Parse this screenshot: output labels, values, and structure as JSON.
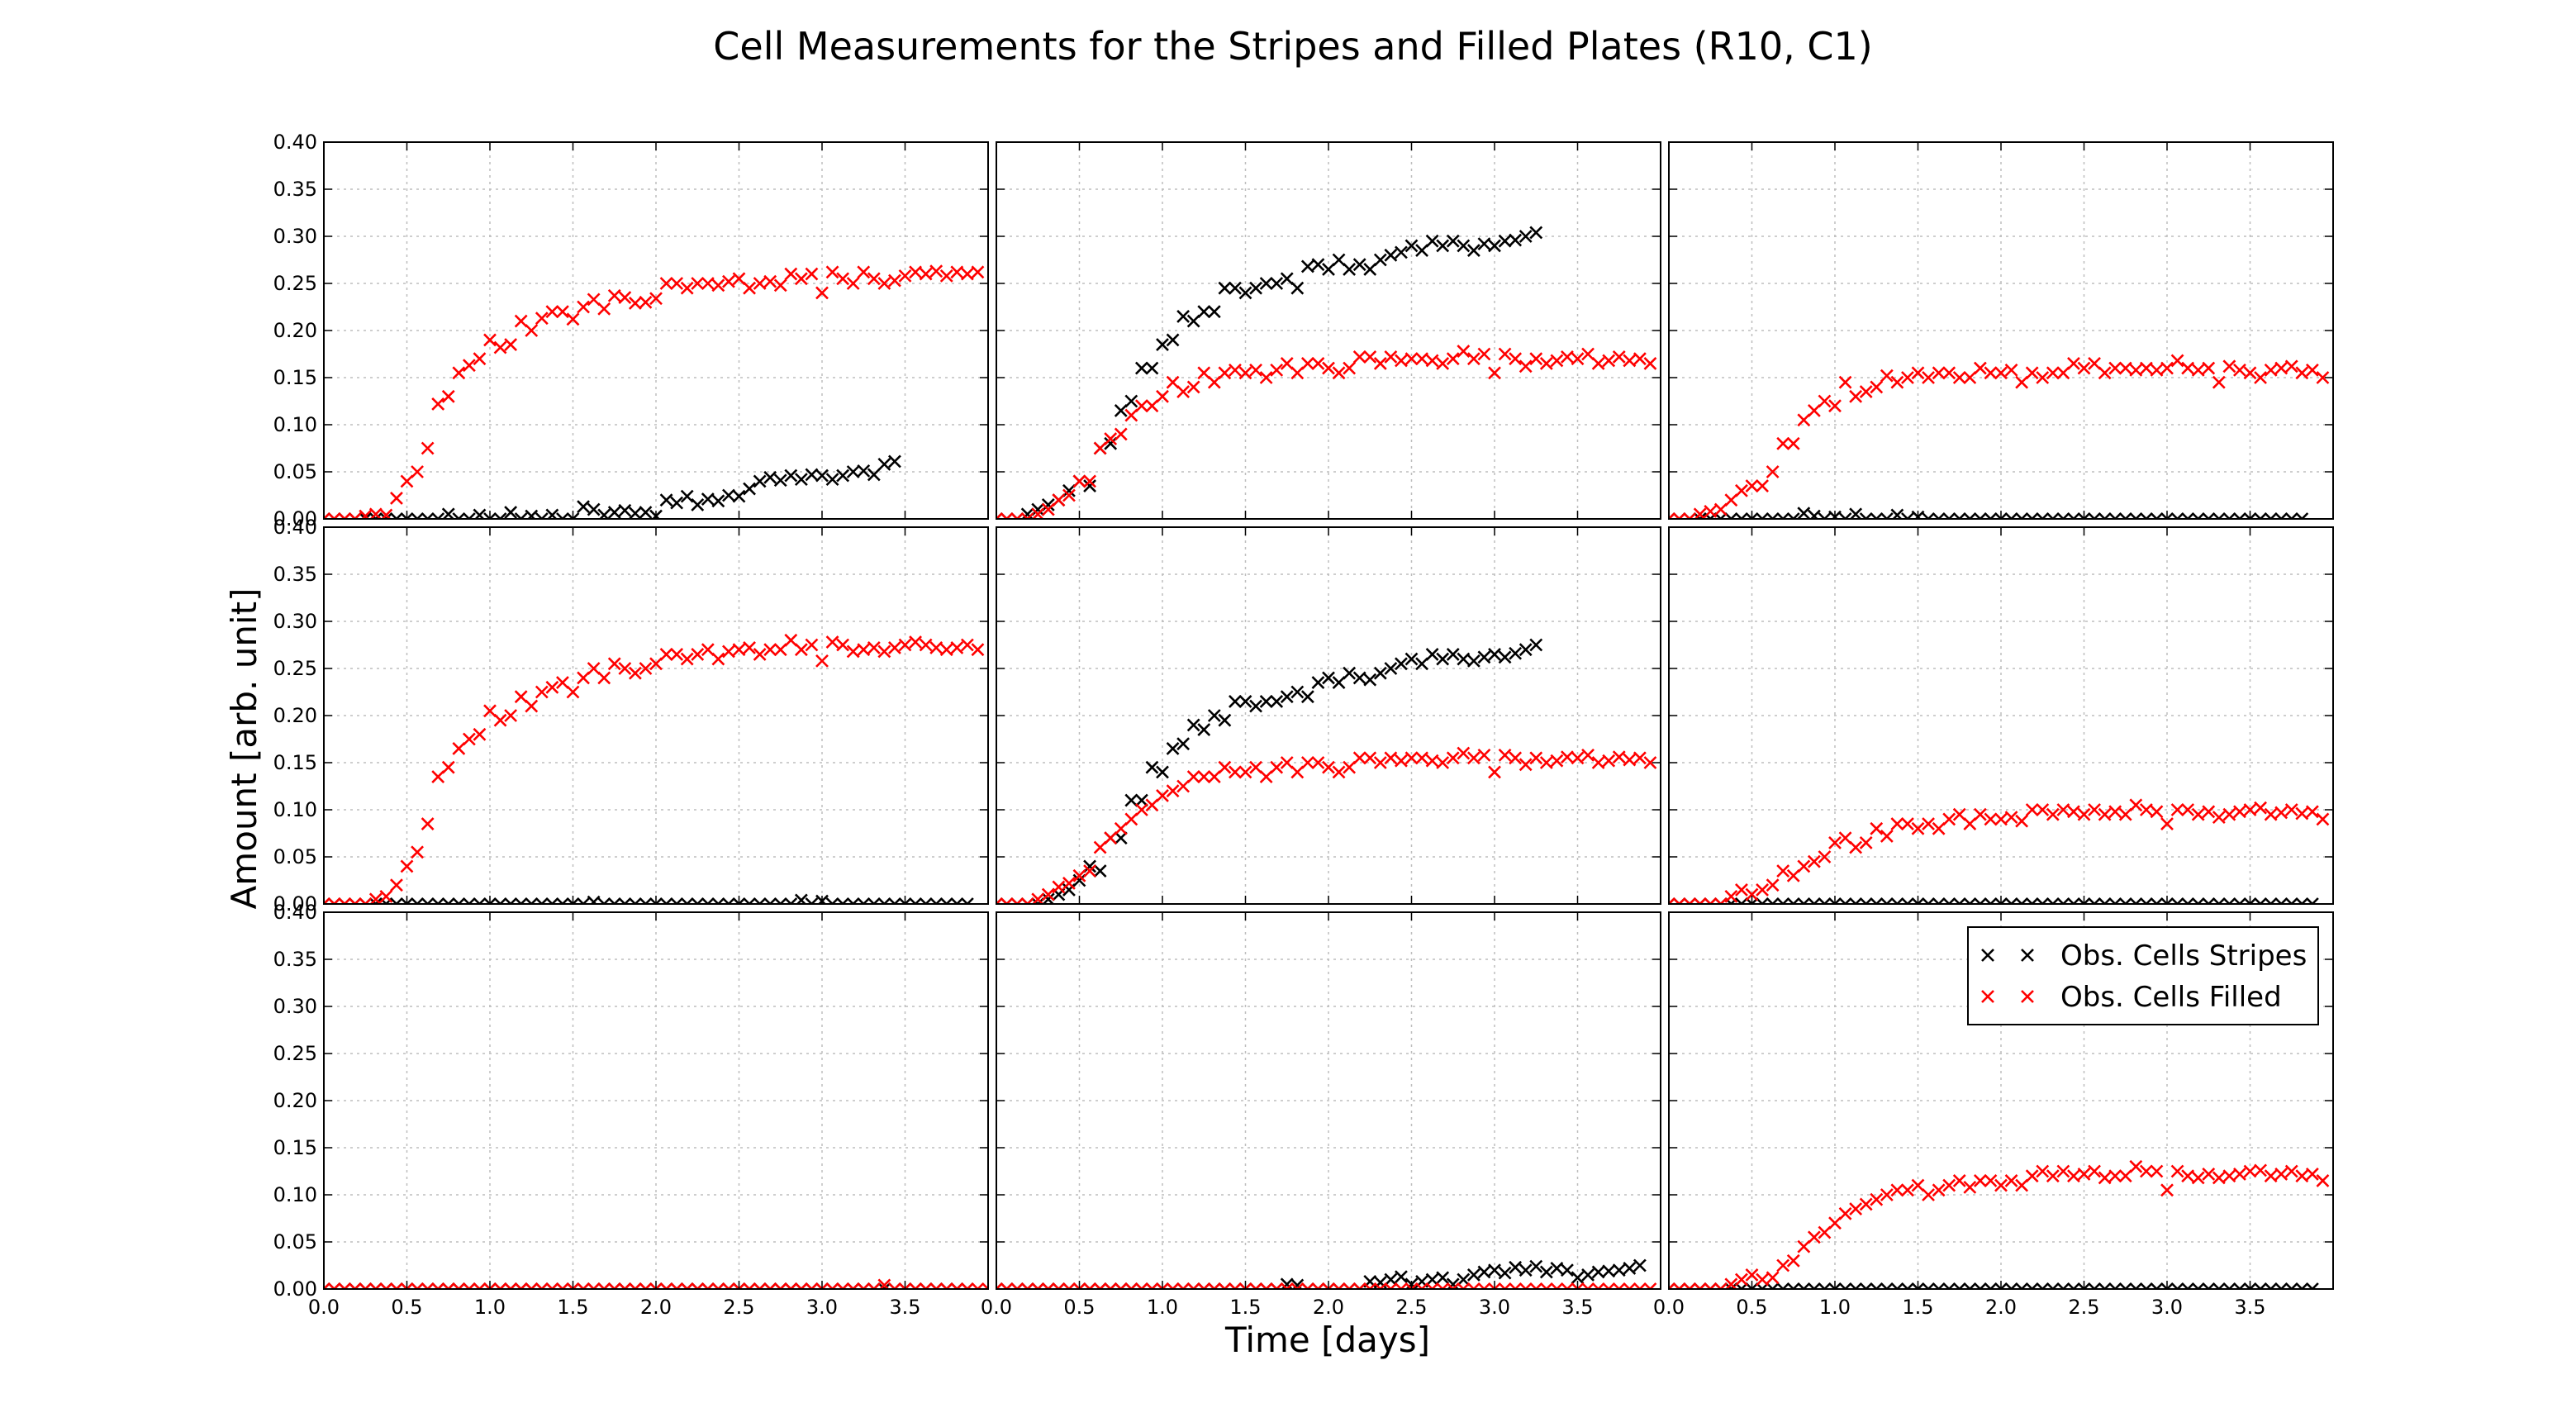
{
  "chart_data": {
    "type": "scatter",
    "title": "Cell Measurements for the Stripes and Filled Plates (R10, C1)",
    "xlabel": "Time [days]",
    "ylabel": "Amount [arb. unit]",
    "xlim": [
      0,
      4.0
    ],
    "ylim": [
      0,
      0.4
    ],
    "xticks": [
      "0.0",
      "0.5",
      "1.0",
      "1.5",
      "2.0",
      "2.5",
      "3.0",
      "3.5"
    ],
    "yticks": [
      "0.00",
      "0.05",
      "0.10",
      "0.15",
      "0.20",
      "0.25",
      "0.30",
      "0.35",
      "0.40"
    ],
    "grid": true,
    "layout": "3x3 grid of panels sharing axes",
    "marker": "x",
    "legend": {
      "placement": "upper-right of bottom-right panel",
      "entries": [
        {
          "name": "Obs. Cells Stripes",
          "color": "#000000"
        },
        {
          "name": "Obs. Cells Filled",
          "color": "#ff0000"
        }
      ]
    },
    "series_colors": {
      "stripes": "#000000",
      "filled": "#ff0000"
    },
    "t0": 0.0,
    "dt": 0.0625,
    "panels": [
      {
        "stripes": [
          0,
          0,
          0,
          0,
          0,
          0,
          0,
          0,
          0,
          0,
          0,
          0,
          0.005,
          0,
          0,
          0.004,
          0,
          0,
          0.007,
          0,
          0.003,
          0,
          0.004,
          0,
          0,
          0.013,
          0.01,
          0.004,
          0.007,
          0.009,
          0.006,
          0.007,
          0.003,
          0.02,
          0.017,
          0.024,
          0.015,
          0.021,
          0.019,
          0.025,
          0.024,
          0.032,
          0.04,
          0.044,
          0.041,
          0.046,
          0.042,
          0.047,
          0.046,
          0.042,
          0.046,
          0.05,
          0.051,
          0.047,
          0.058,
          0.061
        ],
        "filled": [
          0,
          0,
          0,
          0,
          0.003,
          0.005,
          0.004,
          0.022,
          0.04,
          0.05,
          0.075,
          0.122,
          0.13,
          0.155,
          0.163,
          0.17,
          0.19,
          0.182,
          0.185,
          0.21,
          0.2,
          0.213,
          0.22,
          0.22,
          0.212,
          0.225,
          0.233,
          0.223,
          0.237,
          0.235,
          0.229,
          0.23,
          0.234,
          0.25,
          0.25,
          0.245,
          0.25,
          0.25,
          0.248,
          0.252,
          0.255,
          0.245,
          0.25,
          0.252,
          0.248,
          0.26,
          0.255,
          0.26,
          0.24,
          0.262,
          0.255,
          0.25,
          0.262,
          0.255,
          0.25,
          0.253,
          0.258,
          0.262,
          0.26,
          0.263,
          0.258,
          0.262,
          0.26,
          0.262
        ]
      },
      {
        "stripes": [
          0,
          0,
          0,
          0.005,
          0.01,
          0.015,
          0.02,
          0.03,
          0.04,
          0.035,
          0.075,
          0.08,
          0.115,
          0.125,
          0.16,
          0.16,
          0.185,
          0.19,
          0.215,
          0.21,
          0.22,
          0.22,
          0.245,
          0.245,
          0.24,
          0.245,
          0.25,
          0.25,
          0.255,
          0.245,
          0.268,
          0.27,
          0.265,
          0.275,
          0.265,
          0.27,
          0.265,
          0.275,
          0.28,
          0.283,
          0.29,
          0.285,
          0.295,
          0.29,
          0.295,
          0.29,
          0.285,
          0.292,
          0.29,
          0.295,
          0.296,
          0.3,
          0.304
        ],
        "filled": [
          0,
          0,
          0,
          0,
          0.005,
          0.01,
          0.02,
          0.025,
          0.04,
          0.04,
          0.075,
          0.085,
          0.09,
          0.11,
          0.12,
          0.12,
          0.13,
          0.145,
          0.135,
          0.14,
          0.155,
          0.145,
          0.155,
          0.158,
          0.155,
          0.158,
          0.15,
          0.158,
          0.165,
          0.155,
          0.165,
          0.165,
          0.16,
          0.155,
          0.16,
          0.172,
          0.172,
          0.165,
          0.172,
          0.168,
          0.17,
          0.17,
          0.168,
          0.165,
          0.17,
          0.178,
          0.17,
          0.175,
          0.155,
          0.175,
          0.17,
          0.162,
          0.17,
          0.165,
          0.168,
          0.172,
          0.17,
          0.175,
          0.165,
          0.168,
          0.172,
          0.168,
          0.17,
          0.165
        ]
      },
      {
        "stripes": [
          0,
          0,
          0,
          0,
          0,
          0,
          0,
          0,
          0,
          0,
          0,
          0,
          0,
          0.006,
          0.003,
          0,
          0.002,
          0,
          0.005,
          0,
          0,
          0,
          0.004,
          0,
          0.002,
          0,
          0,
          0,
          0,
          0,
          0,
          0,
          0,
          0,
          0,
          0,
          0,
          0,
          0,
          0,
          0,
          0,
          0,
          0,
          0,
          0,
          0,
          0,
          0,
          0,
          0,
          0,
          0,
          0,
          0,
          0,
          0,
          0,
          0,
          0,
          0,
          0
        ],
        "filled": [
          0,
          0,
          0,
          0.005,
          0.008,
          0.01,
          0.02,
          0.03,
          0.035,
          0.035,
          0.05,
          0.08,
          0.08,
          0.105,
          0.115,
          0.125,
          0.12,
          0.145,
          0.13,
          0.135,
          0.14,
          0.152,
          0.145,
          0.15,
          0.155,
          0.15,
          0.155,
          0.155,
          0.15,
          0.15,
          0.16,
          0.155,
          0.155,
          0.158,
          0.145,
          0.155,
          0.15,
          0.155,
          0.155,
          0.165,
          0.16,
          0.165,
          0.155,
          0.16,
          0.16,
          0.158,
          0.16,
          0.158,
          0.16,
          0.168,
          0.16,
          0.158,
          0.16,
          0.145,
          0.162,
          0.158,
          0.155,
          0.15,
          0.158,
          0.16,
          0.162,
          0.155,
          0.158,
          0.15
        ]
      },
      {
        "stripes": [
          0,
          0,
          0,
          0,
          0,
          0,
          0,
          0,
          0,
          0,
          0,
          0,
          0,
          0,
          0,
          0,
          0,
          0,
          0,
          0,
          0,
          0,
          0,
          0,
          0,
          0,
          0.002,
          0,
          0,
          0,
          0,
          0,
          0,
          0,
          0,
          0,
          0,
          0,
          0,
          0,
          0,
          0,
          0,
          0,
          0,
          0,
          0.004,
          0,
          0.003,
          0,
          0,
          0,
          0,
          0,
          0,
          0,
          0,
          0,
          0,
          0,
          0,
          0,
          0
        ],
        "filled": [
          0,
          0,
          0,
          0,
          0,
          0.005,
          0.008,
          0.02,
          0.04,
          0.055,
          0.085,
          0.135,
          0.145,
          0.165,
          0.175,
          0.18,
          0.205,
          0.195,
          0.2,
          0.22,
          0.21,
          0.225,
          0.23,
          0.235,
          0.225,
          0.24,
          0.25,
          0.24,
          0.255,
          0.25,
          0.245,
          0.25,
          0.255,
          0.265,
          0.265,
          0.26,
          0.265,
          0.27,
          0.26,
          0.268,
          0.27,
          0.272,
          0.265,
          0.27,
          0.27,
          0.28,
          0.27,
          0.275,
          0.258,
          0.278,
          0.275,
          0.268,
          0.27,
          0.272,
          0.268,
          0.272,
          0.275,
          0.278,
          0.275,
          0.272,
          0.27,
          0.272,
          0.275,
          0.27
        ]
      },
      {
        "stripes": [
          0,
          0,
          0,
          0,
          0,
          0.005,
          0.01,
          0.015,
          0.025,
          0.04,
          0.035,
          0.07,
          0.07,
          0.11,
          0.11,
          0.145,
          0.14,
          0.165,
          0.17,
          0.19,
          0.185,
          0.2,
          0.195,
          0.215,
          0.215,
          0.21,
          0.215,
          0.215,
          0.22,
          0.225,
          0.22,
          0.235,
          0.24,
          0.235,
          0.245,
          0.24,
          0.238,
          0.245,
          0.25,
          0.255,
          0.26,
          0.255,
          0.265,
          0.26,
          0.265,
          0.26,
          0.258,
          0.262,
          0.265,
          0.262,
          0.266,
          0.27,
          0.275
        ],
        "filled": [
          0,
          0,
          0,
          0,
          0.005,
          0.01,
          0.018,
          0.022,
          0.03,
          0.035,
          0.06,
          0.07,
          0.08,
          0.09,
          0.1,
          0.105,
          0.115,
          0.12,
          0.125,
          0.135,
          0.135,
          0.135,
          0.145,
          0.14,
          0.14,
          0.145,
          0.135,
          0.145,
          0.15,
          0.14,
          0.15,
          0.15,
          0.145,
          0.14,
          0.145,
          0.155,
          0.155,
          0.15,
          0.155,
          0.152,
          0.155,
          0.155,
          0.152,
          0.15,
          0.155,
          0.16,
          0.155,
          0.158,
          0.14,
          0.158,
          0.155,
          0.148,
          0.155,
          0.15,
          0.152,
          0.156,
          0.155,
          0.158,
          0.15,
          0.152,
          0.156,
          0.153,
          0.155,
          0.15
        ]
      },
      {
        "stripes": [
          0,
          0,
          0,
          0,
          0,
          0,
          0,
          0,
          0,
          0,
          0,
          0,
          0,
          0,
          0,
          0,
          0,
          0,
          0,
          0,
          0,
          0,
          0,
          0,
          0,
          0,
          0,
          0,
          0,
          0,
          0,
          0,
          0,
          0,
          0,
          0,
          0,
          0,
          0,
          0,
          0,
          0,
          0,
          0,
          0,
          0,
          0,
          0,
          0,
          0,
          0,
          0,
          0,
          0,
          0,
          0,
          0,
          0,
          0,
          0,
          0,
          0,
          0
        ],
        "filled": [
          0,
          0,
          0,
          0,
          0,
          0,
          0.008,
          0.015,
          0.01,
          0.015,
          0.02,
          0.035,
          0.03,
          0.04,
          0.045,
          0.05,
          0.065,
          0.07,
          0.06,
          0.065,
          0.08,
          0.072,
          0.085,
          0.085,
          0.08,
          0.085,
          0.08,
          0.09,
          0.095,
          0.085,
          0.095,
          0.09,
          0.09,
          0.092,
          0.088,
          0.1,
          0.1,
          0.095,
          0.1,
          0.098,
          0.095,
          0.1,
          0.095,
          0.098,
          0.095,
          0.105,
          0.1,
          0.098,
          0.085,
          0.1,
          0.1,
          0.095,
          0.098,
          0.092,
          0.095,
          0.098,
          0.1,
          0.102,
          0.095,
          0.097,
          0.1,
          0.096,
          0.098,
          0.09
        ]
      },
      {
        "stripes": [
          0,
          0,
          0,
          0,
          0,
          0,
          0,
          0,
          0,
          0,
          0,
          0,
          0,
          0,
          0,
          0,
          0,
          0,
          0,
          0,
          0,
          0,
          0,
          0,
          0,
          0,
          0,
          0,
          0,
          0,
          0,
          0,
          0,
          0,
          0,
          0,
          0,
          0,
          0,
          0,
          0,
          0,
          0,
          0,
          0,
          0,
          0,
          0,
          0,
          0,
          0,
          0,
          0,
          0,
          0,
          0,
          0,
          0,
          0,
          0,
          0,
          0,
          0
        ],
        "filled": [
          0,
          0,
          0,
          0,
          0,
          0,
          0,
          0,
          0,
          0,
          0,
          0,
          0,
          0,
          0,
          0,
          0,
          0,
          0,
          0,
          0,
          0,
          0,
          0,
          0,
          0,
          0,
          0,
          0,
          0,
          0,
          0,
          0,
          0,
          0,
          0,
          0,
          0,
          0,
          0,
          0,
          0,
          0,
          0,
          0,
          0,
          0,
          0,
          0,
          0,
          0,
          0,
          0,
          0,
          0.004,
          0,
          0,
          0,
          0,
          0,
          0,
          0,
          0,
          0,
          0
        ]
      },
      {
        "stripes": [
          0,
          0,
          0,
          0,
          0,
          0,
          0,
          0,
          0,
          0,
          0,
          0,
          0,
          0,
          0,
          0,
          0,
          0,
          0,
          0,
          0,
          0,
          0,
          0,
          0,
          0,
          0,
          0,
          0.005,
          0.004,
          0,
          0,
          0,
          0,
          0,
          0,
          0.008,
          0.007,
          0.01,
          0.013,
          0.005,
          0.008,
          0.01,
          0.012,
          0.005,
          0.01,
          0.015,
          0.018,
          0.02,
          0.017,
          0.023,
          0.02,
          0.024,
          0.018,
          0.022,
          0.02,
          0.012,
          0.015,
          0.018,
          0.019,
          0.02,
          0.022,
          0.025
        ],
        "filled": [
          0,
          0,
          0,
          0,
          0,
          0,
          0,
          0,
          0,
          0,
          0,
          0,
          0,
          0,
          0,
          0,
          0,
          0,
          0,
          0,
          0,
          0,
          0,
          0,
          0,
          0,
          0,
          0,
          0,
          0,
          0,
          0,
          0,
          0,
          0,
          0,
          0,
          0,
          0,
          0,
          0,
          0,
          0,
          0,
          0,
          0,
          0,
          0,
          0,
          0,
          0,
          0,
          0,
          0,
          0,
          0,
          0,
          0,
          0,
          0,
          0,
          0,
          0,
          0
        ]
      },
      {
        "stripes": [
          0,
          0,
          0,
          0,
          0,
          0,
          0,
          0,
          0,
          0,
          0,
          0,
          0,
          0,
          0,
          0,
          0,
          0,
          0,
          0,
          0,
          0,
          0,
          0,
          0,
          0,
          0,
          0,
          0,
          0,
          0,
          0,
          0,
          0,
          0,
          0,
          0,
          0,
          0,
          0,
          0,
          0,
          0,
          0,
          0,
          0,
          0,
          0,
          0,
          0,
          0,
          0,
          0,
          0,
          0,
          0,
          0,
          0,
          0,
          0,
          0,
          0,
          0
        ],
        "filled": [
          0,
          0,
          0,
          0,
          0,
          0,
          0.005,
          0.01,
          0.015,
          0.01,
          0.012,
          0.025,
          0.03,
          0.045,
          0.055,
          0.06,
          0.07,
          0.08,
          0.085,
          0.09,
          0.095,
          0.1,
          0.105,
          0.105,
          0.11,
          0.1,
          0.105,
          0.11,
          0.115,
          0.108,
          0.115,
          0.115,
          0.11,
          0.115,
          0.11,
          0.12,
          0.125,
          0.12,
          0.125,
          0.12,
          0.122,
          0.125,
          0.118,
          0.12,
          0.12,
          0.13,
          0.125,
          0.125,
          0.105,
          0.125,
          0.12,
          0.118,
          0.122,
          0.118,
          0.12,
          0.122,
          0.125,
          0.126,
          0.12,
          0.122,
          0.125,
          0.12,
          0.122,
          0.115
        ]
      }
    ]
  }
}
